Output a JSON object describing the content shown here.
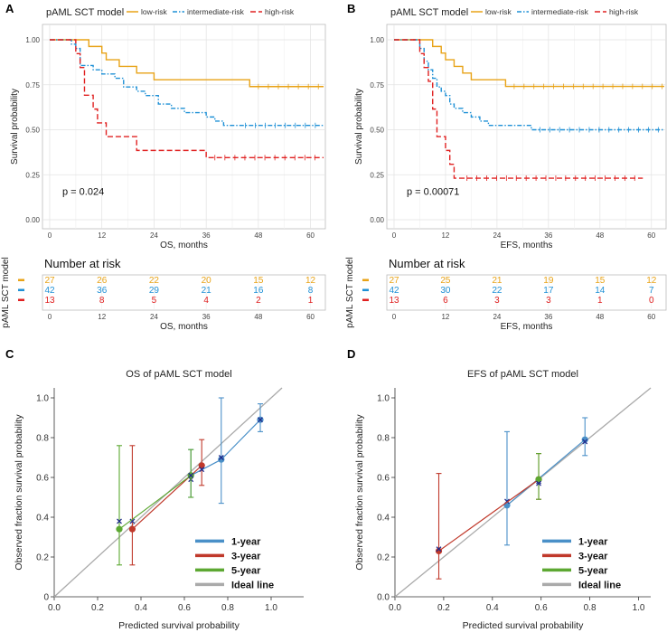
{
  "panel_labels": [
    "A",
    "B",
    "C",
    "D"
  ],
  "colors": {
    "low": "#E8A317",
    "intermediate": "#1E90D6",
    "high": "#E02020",
    "cal1": "#4A90C8",
    "cal3": "#C0392B",
    "cal5": "#5DA832",
    "ideal": "#AAAAAA",
    "cross": "#1F2A8C"
  },
  "chart_data": [
    {
      "type": "line",
      "panel": "A",
      "legend_title": "pAML SCT model",
      "legend": [
        "low-risk",
        "intermediate-risk",
        "high-risk"
      ],
      "ylabel": "Survival probability",
      "xlabel": "OS, months",
      "xticks": [
        "0",
        "12",
        "24",
        "36",
        "48",
        "60"
      ],
      "yticks": [
        "0.00",
        "0.25",
        "0.50",
        "0.75",
        "1.00"
      ],
      "xlim": [
        0,
        63
      ],
      "ylim": [
        0,
        1
      ],
      "pvalue": "p = 0.024",
      "series": [
        {
          "name": "low-risk",
          "x": [
            0,
            9,
            12,
            13,
            16,
            20,
            24,
            46,
            63
          ],
          "y": [
            1.0,
            0.963,
            0.926,
            0.889,
            0.852,
            0.815,
            0.778,
            0.74,
            0.74
          ]
        },
        {
          "name": "intermediate-risk",
          "x": [
            0,
            5,
            6,
            7,
            10,
            12,
            15,
            17,
            20,
            22,
            25,
            28,
            31,
            36,
            38,
            40,
            43,
            63
          ],
          "y": [
            1.0,
            0.976,
            0.952,
            0.857,
            0.833,
            0.81,
            0.786,
            0.738,
            0.714,
            0.69,
            0.643,
            0.619,
            0.595,
            0.571,
            0.548,
            0.524,
            0.524,
            0.524
          ]
        },
        {
          "name": "high-risk",
          "x": [
            0,
            6,
            7,
            8,
            10,
            11,
            13,
            20,
            36,
            63
          ],
          "y": [
            1.0,
            0.923,
            0.846,
            0.692,
            0.615,
            0.538,
            0.462,
            0.385,
            0.345,
            0.345
          ]
        }
      ],
      "risk_table": {
        "title": "Number at risk",
        "ylabel": "pAML SCT model",
        "xlabel": "OS, months",
        "times": [
          "0",
          "12",
          "24",
          "36",
          "48",
          "60"
        ],
        "rows": [
          [
            "27",
            "26",
            "22",
            "20",
            "15",
            "12"
          ],
          [
            "42",
            "36",
            "29",
            "21",
            "16",
            "8"
          ],
          [
            "13",
            "8",
            "5",
            "4",
            "2",
            "1"
          ]
        ]
      }
    },
    {
      "type": "line",
      "panel": "B",
      "legend_title": "pAML SCT model",
      "legend": [
        "low-risk",
        "intermediate-risk",
        "high-risk"
      ],
      "ylabel": "Survival probability",
      "xlabel": "EFS, months",
      "xticks": [
        "0",
        "12",
        "24",
        "36",
        "48",
        "60"
      ],
      "yticks": [
        "0.00",
        "0.25",
        "0.50",
        "0.75",
        "1.00"
      ],
      "xlim": [
        0,
        63
      ],
      "ylim": [
        0,
        1
      ],
      "pvalue": "p = 0.00071",
      "series": [
        {
          "name": "low-risk",
          "x": [
            0,
            9,
            11,
            12,
            14,
            16,
            18,
            20,
            26,
            63
          ],
          "y": [
            1.0,
            0.963,
            0.926,
            0.889,
            0.852,
            0.815,
            0.778,
            0.778,
            0.741,
            0.741
          ]
        },
        {
          "name": "intermediate-risk",
          "x": [
            0,
            6,
            7,
            8,
            9,
            10,
            11,
            12,
            13,
            14,
            16,
            18,
            20,
            22,
            24,
            32,
            63
          ],
          "y": [
            1.0,
            0.952,
            0.881,
            0.833,
            0.786,
            0.738,
            0.714,
            0.69,
            0.643,
            0.619,
            0.595,
            0.571,
            0.548,
            0.524,
            0.524,
            0.5,
            0.5
          ]
        },
        {
          "name": "high-risk",
          "x": [
            0,
            6,
            7,
            8,
            9,
            10,
            12,
            13,
            14,
            15,
            58
          ],
          "y": [
            1.0,
            0.923,
            0.846,
            0.769,
            0.615,
            0.462,
            0.385,
            0.308,
            0.231,
            0.231,
            0.231
          ]
        }
      ],
      "risk_table": {
        "title": "Number at risk",
        "ylabel": "pAML SCT model",
        "xlabel": "EFS, months",
        "times": [
          "0",
          "12",
          "24",
          "36",
          "48",
          "60"
        ],
        "rows": [
          [
            "27",
            "25",
            "21",
            "19",
            "15",
            "12"
          ],
          [
            "42",
            "30",
            "22",
            "17",
            "14",
            "7"
          ],
          [
            "13",
            "6",
            "3",
            "3",
            "1",
            "0"
          ]
        ]
      }
    },
    {
      "type": "scatter",
      "panel": "C",
      "title": "OS of pAML SCT model",
      "xlabel": "Predicted survival probability",
      "ylabel": "Observed fraction survival probability",
      "xticks": [
        "0.0",
        "0.2",
        "0.4",
        "0.6",
        "0.8",
        "1.0"
      ],
      "yticks": [
        "0",
        "0.2",
        "0.4",
        "0.6",
        "0.8",
        "1.0"
      ],
      "xlim": [
        0,
        1.15
      ],
      "ylim": [
        0,
        1.05
      ],
      "legend": [
        "1-year",
        "3-year",
        "5-year",
        "Ideal line"
      ],
      "series": [
        {
          "name": "1-year",
          "points": [
            {
              "x": 0.63,
              "y": 0.61,
              "lo": 0.5,
              "hi": 0.74
            },
            {
              "x": 0.77,
              "y": 0.69,
              "lo": 0.47,
              "hi": 1.0
            },
            {
              "x": 0.95,
              "y": 0.89,
              "lo": 0.83,
              "hi": 0.97
            }
          ],
          "crosses": [
            [
              0.63,
              0.59
            ],
            [
              0.77,
              0.7
            ],
            [
              0.95,
              0.89
            ]
          ]
        },
        {
          "name": "3-year",
          "points": [
            {
              "x": 0.36,
              "y": 0.34,
              "lo": 0.16,
              "hi": 0.76
            },
            {
              "x": 0.68,
              "y": 0.66,
              "lo": 0.56,
              "hi": 0.79
            }
          ],
          "crosses": [
            [
              0.36,
              0.38
            ],
            [
              0.68,
              0.64
            ]
          ]
        },
        {
          "name": "5-year",
          "points": [
            {
              "x": 0.3,
              "y": 0.34,
              "lo": 0.16,
              "hi": 0.76
            },
            {
              "x": 0.63,
              "y": 0.61,
              "lo": 0.5,
              "hi": 0.74
            }
          ],
          "crosses": [
            [
              0.3,
              0.38
            ],
            [
              0.63,
              0.61
            ]
          ]
        }
      ]
    },
    {
      "type": "scatter",
      "panel": "D",
      "title": "EFS of pAML SCT model",
      "xlabel": "Predicted survival probability",
      "ylabel": "Observed fraction survival probability",
      "xticks": [
        "0.0",
        "0.2",
        "0.4",
        "0.6",
        "0.8",
        "1.0"
      ],
      "yticks": [
        "0.0",
        "0.2",
        "0.4",
        "0.6",
        "0.8",
        "1.0"
      ],
      "xlim": [
        0,
        1.05
      ],
      "ylim": [
        0,
        1.05
      ],
      "legend": [
        "1-year",
        "3-year",
        "5-year",
        "Ideal line"
      ],
      "series": [
        {
          "name": "1-year",
          "points": [
            {
              "x": 0.46,
              "y": 0.46,
              "lo": 0.26,
              "hi": 0.83
            },
            {
              "x": 0.78,
              "y": 0.79,
              "lo": 0.71,
              "hi": 0.9
            }
          ],
          "crosses": [
            [
              0.46,
              0.48
            ],
            [
              0.78,
              0.78
            ]
          ]
        },
        {
          "name": "3-year",
          "points": [
            {
              "x": 0.18,
              "y": 0.23,
              "lo": 0.09,
              "hi": 0.62
            },
            {
              "x": 0.59,
              "y": 0.59,
              "lo": 0.49,
              "hi": 0.72
            }
          ],
          "crosses": [
            [
              0.18,
              0.24
            ],
            [
              0.59,
              0.58
            ]
          ]
        },
        {
          "name": "5-year",
          "points": [
            {
              "x": 0.59,
              "y": 0.59,
              "lo": 0.49,
              "hi": 0.72
            }
          ],
          "crosses": [
            [
              0.59,
              0.57
            ]
          ]
        }
      ]
    }
  ]
}
